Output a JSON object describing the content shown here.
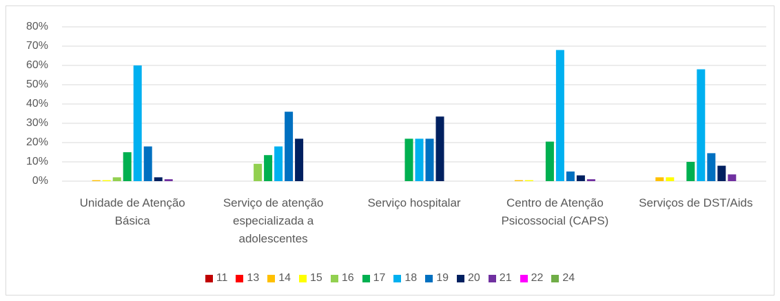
{
  "chart_data": {
    "type": "bar",
    "categories": [
      "Unidade de Atenção Básica",
      "Serviço de atenção especializada a adolescentes",
      "Serviço hospitalar",
      "Centro de Atenção Psicossocial (CAPS)",
      "Serviços de DST/Aids"
    ],
    "series": [
      {
        "name": "11",
        "color": "#c00000",
        "values": [
          0,
          0,
          0,
          0,
          0
        ]
      },
      {
        "name": "13",
        "color": "#ff0000",
        "values": [
          0,
          0,
          0,
          0,
          0
        ]
      },
      {
        "name": "14",
        "color": "#ffc000",
        "values": [
          0.5,
          0,
          0,
          0.5,
          2
        ]
      },
      {
        "name": "15",
        "color": "#ffff00",
        "values": [
          0.5,
          0,
          0,
          0.5,
          2
        ]
      },
      {
        "name": "16",
        "color": "#92d050",
        "values": [
          2,
          9,
          0,
          0,
          0
        ]
      },
      {
        "name": "17",
        "color": "#00b050",
        "values": [
          15,
          13.5,
          22,
          20.5,
          10
        ]
      },
      {
        "name": "18",
        "color": "#00b0f0",
        "values": [
          60,
          18,
          22,
          68,
          58
        ]
      },
      {
        "name": "19",
        "color": "#0070c0",
        "values": [
          18,
          36,
          22,
          5,
          14.5
        ]
      },
      {
        "name": "20",
        "color": "#002060",
        "values": [
          2,
          22,
          33.5,
          3,
          8
        ]
      },
      {
        "name": "21",
        "color": "#7030a0",
        "values": [
          1,
          0,
          0,
          1,
          3.5
        ]
      },
      {
        "name": "22",
        "color": "#ff00ff",
        "values": [
          0,
          0,
          0,
          0,
          0
        ]
      },
      {
        "name": "24",
        "color": "#70ad47",
        "values": [
          0,
          0,
          0,
          0,
          0
        ]
      }
    ],
    "ylim": [
      0,
      80
    ],
    "yticks": [
      {
        "value": 0,
        "label": "0%"
      },
      {
        "value": 10,
        "label": "10%"
      },
      {
        "value": 20,
        "label": "20%"
      },
      {
        "value": 30,
        "label": "30%"
      },
      {
        "value": 40,
        "label": "40%"
      },
      {
        "value": 50,
        "label": "50%"
      },
      {
        "value": 60,
        "label": "60%"
      },
      {
        "value": 70,
        "label": "70%"
      },
      {
        "value": 80,
        "label": "80%"
      }
    ],
    "grid": true,
    "legend": "bottom"
  }
}
